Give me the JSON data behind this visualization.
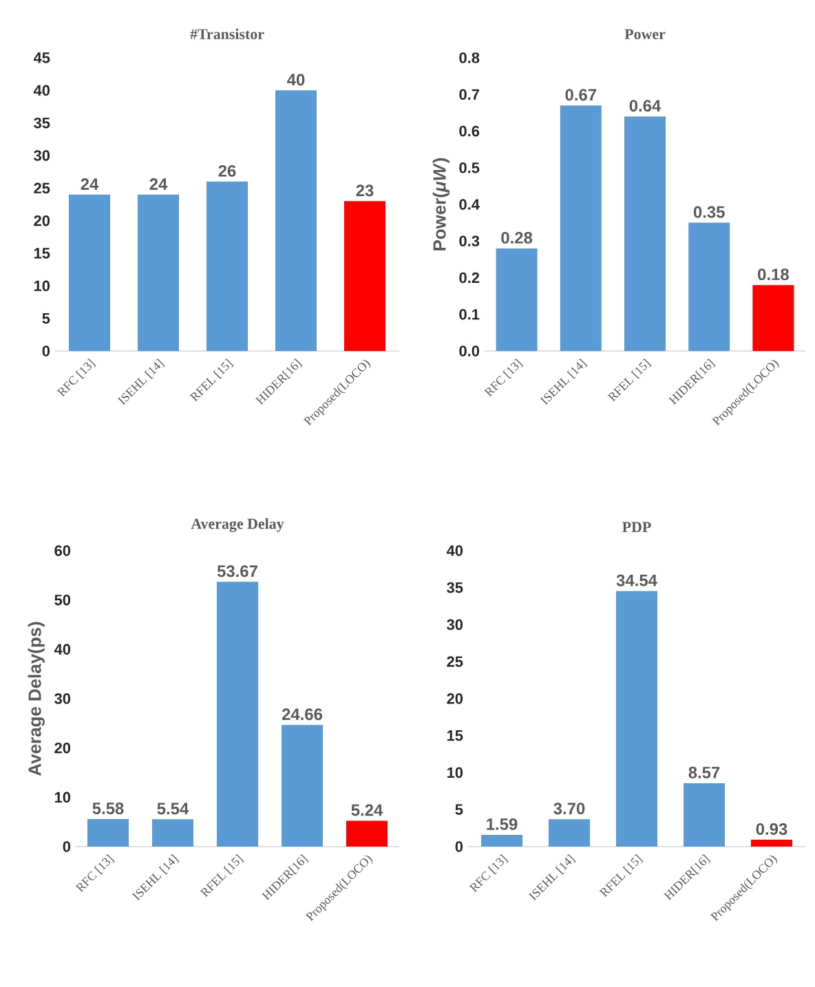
{
  "chart_data": [
    {
      "type": "bar",
      "title": "#Transistor",
      "categories": [
        "RFC [13]",
        "ISEHL [14]",
        "RFEL [15]",
        "HIDER[16]",
        "Proposed(LOCO)"
      ],
      "values": [
        24,
        24,
        26,
        40,
        23
      ],
      "colors": [
        "#5b9bd5",
        "#5b9bd5",
        "#5b9bd5",
        "#5b9bd5",
        "#ff0000"
      ],
      "ylim": [
        0,
        45
      ],
      "yticks": [
        0,
        5,
        10,
        15,
        20,
        25,
        30,
        35,
        40,
        45
      ],
      "data_labels": true
    },
    {
      "type": "bar",
      "title": "Power",
      "ylabel": "Power(*μW*)",
      "categories": [
        "RFC [13]",
        "ISEHL [14]",
        "RFEL [15]",
        "HIDER[16]",
        "Proposed(LOCO)"
      ],
      "values": [
        0.28,
        0.67,
        0.64,
        0.35,
        0.18
      ],
      "colors": [
        "#5b9bd5",
        "#5b9bd5",
        "#5b9bd5",
        "#5b9bd5",
        "#ff0000"
      ],
      "ylim": [
        0,
        0.8
      ],
      "yticks": [
        {
          "value": 0,
          "label": "0.0"
        },
        0.1,
        0.2,
        0.3,
        0.4,
        0.5,
        0.6,
        0.7,
        0.8
      ],
      "data_labels": true
    },
    {
      "type": "bar",
      "title": "Average Delay",
      "ylabel": "Average Delay(ps)",
      "categories": [
        "RFC [13]",
        "ISEHL [14]",
        "RFEL [15]",
        "HIDER[16]",
        "Proposed(LOCO)"
      ],
      "values": [
        5.58,
        5.54,
        53.67,
        24.66,
        5.24
      ],
      "colors": [
        "#5b9bd5",
        "#5b9bd5",
        "#5b9bd5",
        "#5b9bd5",
        "#ff0000"
      ],
      "ylim": [
        0,
        60
      ],
      "yticks": [
        0,
        10,
        20,
        30,
        40,
        50,
        60
      ],
      "data_labels": true
    },
    {
      "type": "bar",
      "title": "PDP",
      "categories": [
        "RFC [13]",
        "ISEHL [14]",
        "RFEL [15]",
        "HIDER[16]",
        "Proposed(LOCO)"
      ],
      "values": [
        1.59,
        3.7,
        34.54,
        8.57,
        0.93
      ],
      "value_labels": [
        "1.59",
        "3.70",
        "34.54",
        "8.57",
        "0.93"
      ],
      "colors": [
        "#5b9bd5",
        "#5b9bd5",
        "#5b9bd5",
        "#5b9bd5",
        "#ff0000"
      ],
      "ylim": [
        0,
        40
      ],
      "yticks": [
        0,
        5,
        10,
        15,
        20,
        25,
        30,
        35,
        40
      ]
    }
  ]
}
